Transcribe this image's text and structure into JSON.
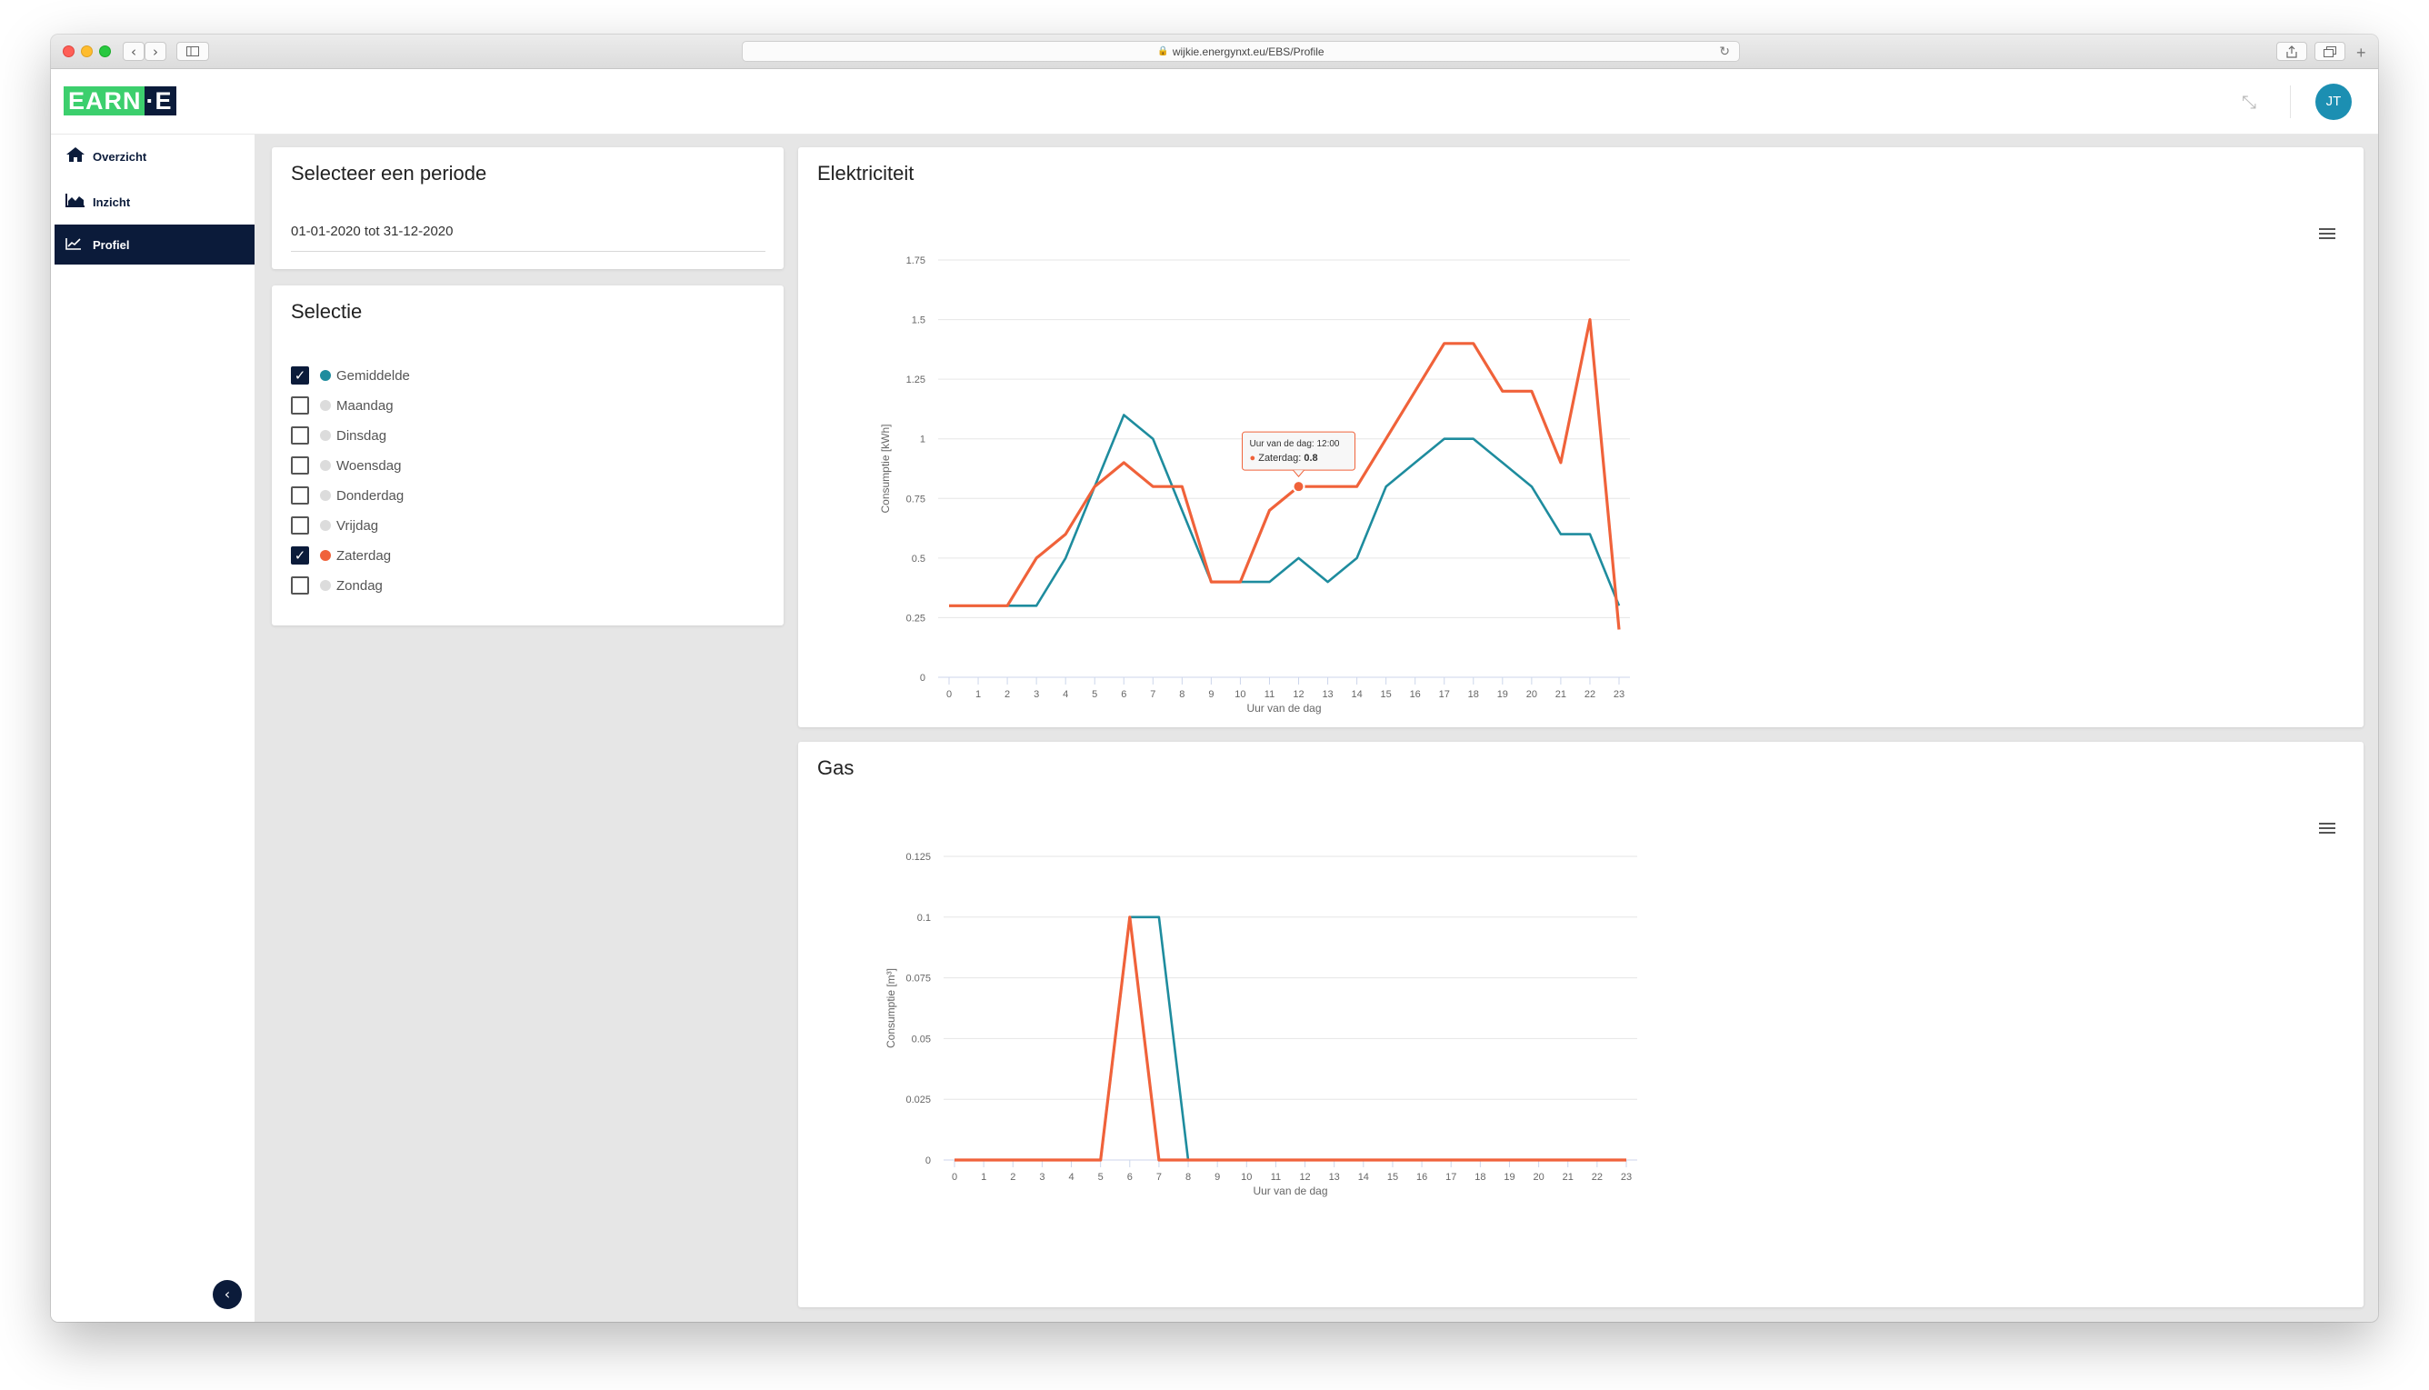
{
  "browser": {
    "url": "wijkie.energynxt.eu/EBS/Profile"
  },
  "app": {
    "logo_left": "EARN",
    "logo_right": "E",
    "avatar_initials": "JT"
  },
  "sidebar": {
    "items": [
      {
        "label": "Overzicht",
        "icon": "home-icon",
        "active": false
      },
      {
        "label": "Inzicht",
        "icon": "area-chart-icon",
        "active": false
      },
      {
        "label": "Profiel",
        "icon": "line-chart-icon",
        "active": true
      }
    ]
  },
  "period_card": {
    "title": "Selecteer een periode",
    "value": "01-01-2020 tot 31-12-2020"
  },
  "selection_card": {
    "title": "Selectie",
    "items": [
      {
        "label": "Gemiddelde",
        "checked": true,
        "color": "#1e8c9e"
      },
      {
        "label": "Maandag",
        "checked": false,
        "color": "#dcdcdc"
      },
      {
        "label": "Dinsdag",
        "checked": false,
        "color": "#dcdcdc"
      },
      {
        "label": "Woensdag",
        "checked": false,
        "color": "#dcdcdc"
      },
      {
        "label": "Donderdag",
        "checked": false,
        "color": "#dcdcdc"
      },
      {
        "label": "Vrijdag",
        "checked": false,
        "color": "#dcdcdc"
      },
      {
        "label": "Zaterdag",
        "checked": true,
        "color": "#f0623a"
      },
      {
        "label": "Zondag",
        "checked": false,
        "color": "#dcdcdc"
      }
    ]
  },
  "colors": {
    "teal": "#1e8c9e",
    "orange": "#f0623a",
    "navy": "#0b1b3a",
    "green": "#3ccf6d"
  },
  "chart_data": [
    {
      "type": "line",
      "title": "Elektriciteit",
      "xlabel": "Uur van de dag",
      "ylabel": "Consumptie [kWh]",
      "x": [
        0,
        1,
        2,
        3,
        4,
        5,
        6,
        7,
        8,
        9,
        10,
        11,
        12,
        13,
        14,
        15,
        16,
        17,
        18,
        19,
        20,
        21,
        22,
        23
      ],
      "ylim": [
        0,
        1.75
      ],
      "yticks": [
        "0",
        "0.25",
        "0.5",
        "0.75",
        "1",
        "1.25",
        "1.5",
        "1.75"
      ],
      "series": [
        {
          "name": "Gemiddelde",
          "color": "#1e8c9e",
          "values": [
            0.3,
            0.3,
            0.3,
            0.3,
            0.5,
            0.8,
            1.1,
            1.0,
            0.7,
            0.4,
            0.4,
            0.4,
            0.5,
            0.4,
            0.5,
            0.8,
            0.9,
            1.0,
            1.0,
            0.9,
            0.8,
            0.6,
            0.6,
            0.3
          ]
        },
        {
          "name": "Zaterdag",
          "color": "#f0623a",
          "values": [
            0.3,
            0.3,
            0.3,
            0.5,
            0.6,
            0.8,
            0.9,
            0.8,
            0.8,
            0.4,
            0.4,
            0.7,
            0.8,
            0.8,
            0.8,
            1.0,
            1.2,
            1.4,
            1.4,
            1.2,
            1.2,
            0.9,
            1.5,
            0.2
          ]
        }
      ],
      "tooltip": {
        "header": "Uur van de dag: 12:00",
        "series": "Zaterdag",
        "value": "0.8",
        "x": 12,
        "y": 0.8
      }
    },
    {
      "type": "line",
      "title": "Gas",
      "xlabel": "Uur van de dag",
      "ylabel": "Consumptie [m³]",
      "x": [
        0,
        1,
        2,
        3,
        4,
        5,
        6,
        7,
        8,
        9,
        10,
        11,
        12,
        13,
        14,
        15,
        16,
        17,
        18,
        19,
        20,
        21,
        22,
        23
      ],
      "ylim": [
        0,
        0.125
      ],
      "yticks": [
        "0",
        "0.025",
        "0.05",
        "0.075",
        "0.1",
        "0.125"
      ],
      "series": [
        {
          "name": "Gemiddelde",
          "color": "#1e8c9e",
          "values": [
            0,
            0,
            0,
            0,
            0,
            0,
            0.1,
            0.1,
            0,
            0,
            0,
            0,
            0,
            0,
            0,
            0,
            0,
            0,
            0,
            0,
            0,
            0,
            0,
            0
          ]
        },
        {
          "name": "Zaterdag",
          "color": "#f0623a",
          "values": [
            0,
            0,
            0,
            0,
            0,
            0,
            0.1,
            0,
            0,
            0,
            0,
            0,
            0,
            0,
            0,
            0,
            0,
            0,
            0,
            0,
            0,
            0,
            0,
            0
          ]
        }
      ]
    }
  ]
}
